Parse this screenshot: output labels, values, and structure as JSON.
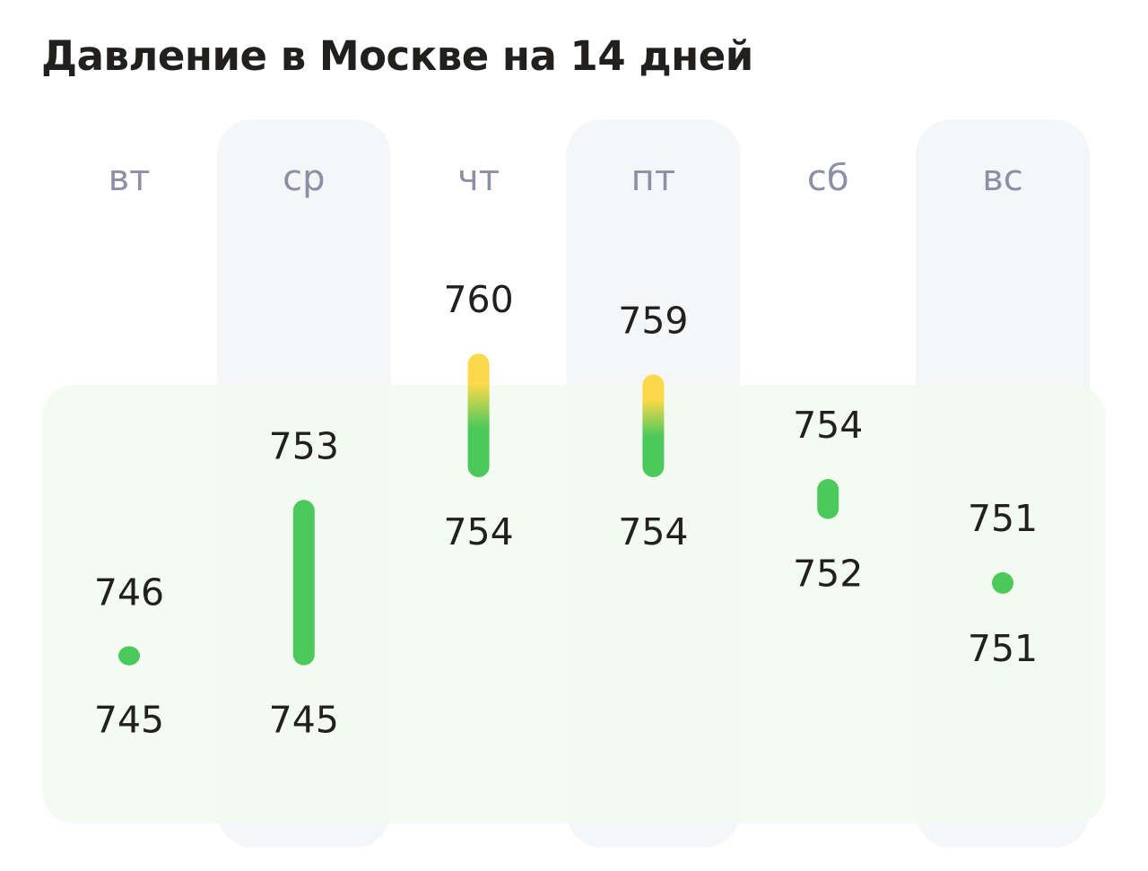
{
  "title": "Давление в Москве на 14 дней",
  "chart_data": {
    "type": "range-bar",
    "title": "Давление в Москве на 14 дней",
    "categories": [
      "вт",
      "ср",
      "чт",
      "пт",
      "сб",
      "вс"
    ],
    "highlighted_categories": [
      "ср",
      "пт",
      "вс"
    ],
    "series": [
      {
        "name": "",
        "low": [
          745,
          745,
          754,
          754,
          752,
          751
        ],
        "high": [
          746,
          753,
          760,
          759,
          754,
          751
        ]
      }
    ],
    "normal_band": [
      745,
      755
    ],
    "ylim": [
      743,
      762
    ],
    "colors": {
      "normal": "#4cc95b",
      "high": "#fbd94a",
      "band": "#f1faef",
      "column_highlight": "#f5f6f8",
      "day_label": "#8c8fa6",
      "value_label": "#21201f"
    }
  }
}
